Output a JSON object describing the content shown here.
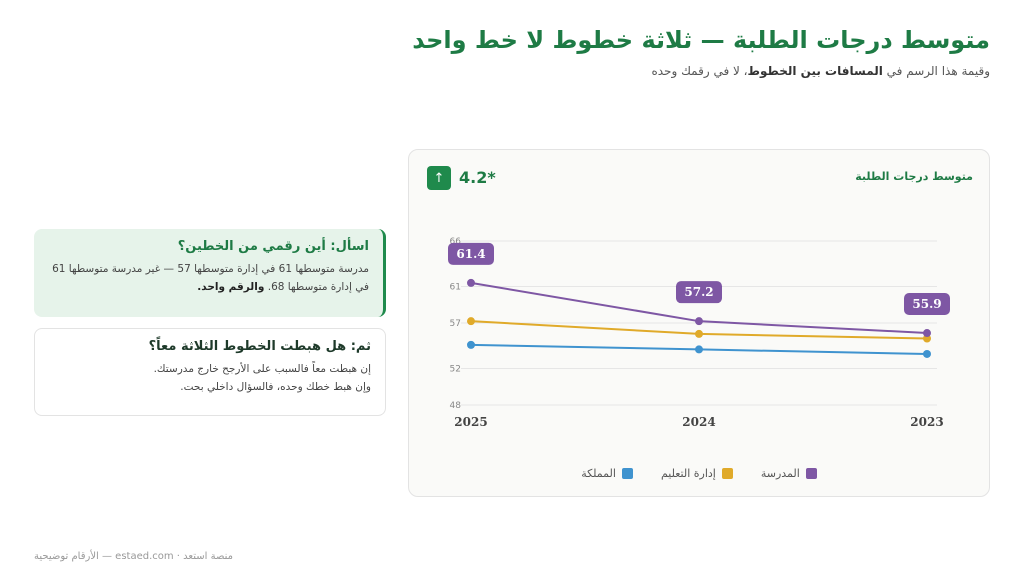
{
  "header": {
    "title": "متوسط درجات الطلبة — ثلاثة خطوط لا خط واحد",
    "subtitle_pre": "وقيمة هذا الرسم في ",
    "subtitle_bold": "المسافات بين الخطوط",
    "subtitle_post": "، لا في رقمك وحده"
  },
  "chart_card": {
    "title": "متوسط درجات الطلبة",
    "delta_value": "4.2*",
    "delta_icon": "arrow-up-icon"
  },
  "cards": [
    {
      "title": "اسأل: أين رقمي من الخطين؟",
      "body": "مدرسة متوسطها 61 في إدارة متوسطها 57 — غير مدرسة متوسطها 61 في إدارة متوسطها 68.",
      "body_bold": "والرقم واحد."
    },
    {
      "title": "ثم: هل هبطت الخطوط الثلاثة معاً؟",
      "line1": "إن هبطت معاً فالسبب على الأرجح خارج مدرستك.",
      "line2": "وإن هبط خطك وحده، فالسؤال داخلي بحت."
    }
  ],
  "footer": "منصة استعد · estaed.com — الأرقام توضيحية",
  "chart_data": {
    "type": "line",
    "title": "متوسط درجات الطلبة",
    "categories": [
      "2025",
      "2024",
      "2023"
    ],
    "yticks": [
      48,
      52,
      57,
      61,
      66
    ],
    "ylim": [
      48,
      66
    ],
    "series": [
      {
        "name": "المدرسة",
        "color": "#7e57a4",
        "values": [
          61.4,
          57.2,
          55.9
        ]
      },
      {
        "name": "إدارة التعليم",
        "color": "#e0aa2a",
        "values": [
          57.2,
          55.8,
          55.3
        ]
      },
      {
        "name": "المملكة",
        "color": "#3f93cf",
        "values": [
          54.6,
          54.1,
          53.6
        ]
      }
    ],
    "data_labels": [
      "61.4",
      "57.2",
      "55.9"
    ],
    "legend_position": "bottom",
    "grid": true
  }
}
